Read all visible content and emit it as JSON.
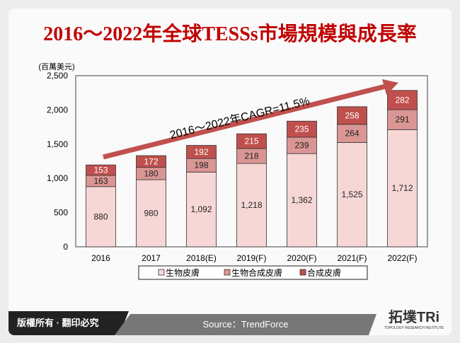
{
  "title": "2016～2022年全球TESSs市場規模與成長率",
  "footer": {
    "copyright": "版權所有 · 翻印必究",
    "source": "Source：TrendForce",
    "logo": "拓墣TRi",
    "logo_sub": "TOPOLOGY RESEARCH INSTITUTE"
  },
  "chart_data": {
    "type": "bar",
    "stacked": true,
    "title": "2016～2022年全球TESSs市場規模與成長率",
    "ylabel": "(百萬美元)",
    "ylim": [
      0,
      2500
    ],
    "yticks": [
      "0",
      "500",
      "1,000",
      "1,500",
      "2,000",
      "2,500"
    ],
    "categories": [
      "2016",
      "2017",
      "2018(E)",
      "2019(F)",
      "2020(F)",
      "2021(F)",
      "2022(F)"
    ],
    "series": [
      {
        "name": "生物皮膚",
        "color": "#f6d7d6",
        "values": [
          880,
          980,
          1092,
          1218,
          1362,
          1525,
          1712
        ],
        "labels": [
          "880",
          "980",
          "1,092",
          "1,218",
          "1,362",
          "1,525",
          "1,712"
        ]
      },
      {
        "name": "生物合成皮膚",
        "color": "#da9694",
        "values": [
          163,
          180,
          198,
          218,
          239,
          264,
          291
        ],
        "labels": [
          "163",
          "180",
          "198",
          "218",
          "239",
          "264",
          "291"
        ]
      },
      {
        "name": "合成皮膚",
        "color": "#c0504d",
        "values": [
          153,
          172,
          192,
          215,
          235,
          258,
          282
        ],
        "labels": [
          "153",
          "172",
          "192",
          "215",
          "235",
          "258",
          "282"
        ]
      }
    ],
    "annotation": "2016～2022年CAGR=11.5%",
    "legend_position": "bottom",
    "grid": false
  }
}
